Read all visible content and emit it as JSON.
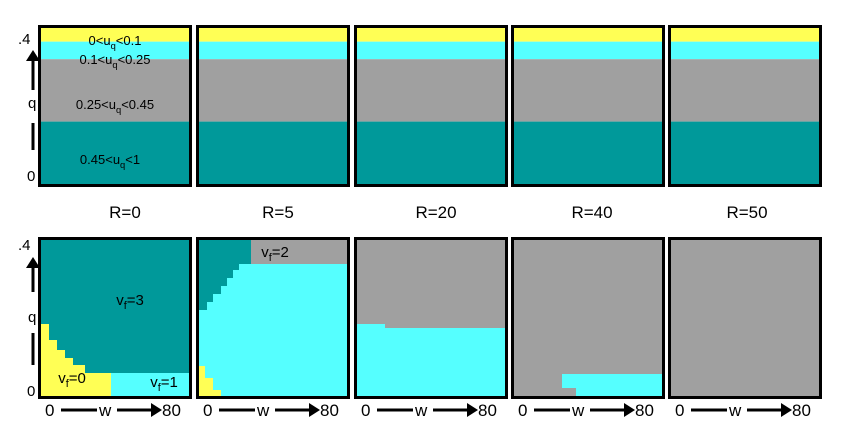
{
  "colors": {
    "yellow": "#ffff55",
    "cyan": "#55ffff",
    "gray": "#a0a0a0",
    "teal": "#00999a",
    "frame": "#000000"
  },
  "labels": {
    "q_axis": {
      "top": ".4",
      "mid": "q",
      "bottom": "0"
    },
    "w_axis": {
      "left": "0",
      "mid": "w",
      "right": "80"
    },
    "top_regions": [
      {
        "pre": "0<u",
        "sub": "q",
        "post": "<0.1"
      },
      {
        "pre": "0.1<u",
        "sub": "q",
        "post": "<0.25"
      },
      {
        "pre": "0.25<u",
        "sub": "q",
        "post": "<0.45"
      },
      {
        "pre": "0.45<u",
        "sub": "q",
        "post": "<1"
      }
    ],
    "vf_labels": [
      {
        "pre": "v",
        "sub": "f",
        "post": "=3"
      },
      {
        "pre": "v",
        "sub": "f",
        "post": "=0"
      },
      {
        "pre": "v",
        "sub": "f",
        "post": "=1"
      },
      {
        "pre": "v",
        "sub": "f",
        "post": "=2"
      }
    ]
  },
  "chart_data": [
    {
      "type": "heatmap",
      "title": "",
      "xlabel": "",
      "ylabel": "q",
      "ylim": [
        0,
        0.4
      ],
      "panels": [
        {
          "label": "R=0",
          "bands": [
            {
              "range": "0<uq<0.1",
              "q_lo": 0.365,
              "q_hi": 0.4
            },
            {
              "range": "0.1<uq<0.25",
              "q_lo": 0.32,
              "q_hi": 0.365
            },
            {
              "range": "0.25<uq<0.45",
              "q_lo": 0.16,
              "q_hi": 0.32
            },
            {
              "range": "0.45<uq<1",
              "q_lo": 0.0,
              "q_hi": 0.16
            }
          ]
        },
        {
          "label": "R=5",
          "bands": [
            {
              "range": "0<uq<0.1",
              "q_lo": 0.365,
              "q_hi": 0.4
            },
            {
              "range": "0.1<uq<0.25",
              "q_lo": 0.32,
              "q_hi": 0.365
            },
            {
              "range": "0.25<uq<0.45",
              "q_lo": 0.16,
              "q_hi": 0.32
            },
            {
              "range": "0.45<uq<1",
              "q_lo": 0.0,
              "q_hi": 0.16
            }
          ]
        },
        {
          "label": "R=20",
          "bands": [
            {
              "range": "0<uq<0.1",
              "q_lo": 0.365,
              "q_hi": 0.4
            },
            {
              "range": "0.1<uq<0.25",
              "q_lo": 0.32,
              "q_hi": 0.365
            },
            {
              "range": "0.25<uq<0.45",
              "q_lo": 0.16,
              "q_hi": 0.32
            },
            {
              "range": "0.45<uq<1",
              "q_lo": 0.0,
              "q_hi": 0.16
            }
          ]
        },
        {
          "label": "R=40",
          "bands": [
            {
              "range": "0<uq<0.1",
              "q_lo": 0.365,
              "q_hi": 0.4
            },
            {
              "range": "0.1<uq<0.25",
              "q_lo": 0.32,
              "q_hi": 0.365
            },
            {
              "range": "0.25<uq<0.45",
              "q_lo": 0.16,
              "q_hi": 0.32
            },
            {
              "range": "0.45<uq<1",
              "q_lo": 0.0,
              "q_hi": 0.16
            }
          ]
        },
        {
          "label": "R=50",
          "bands": [
            {
              "range": "0<uq<0.1",
              "q_lo": 0.365,
              "q_hi": 0.4
            },
            {
              "range": "0.1<uq<0.25",
              "q_lo": 0.32,
              "q_hi": 0.365
            },
            {
              "range": "0.25<uq<0.45",
              "q_lo": 0.16,
              "q_hi": 0.32
            },
            {
              "range": "0.45<uq<1",
              "q_lo": 0.0,
              "q_hi": 0.16
            }
          ]
        }
      ]
    },
    {
      "type": "heatmap",
      "title": "",
      "xlabel": "w",
      "ylabel": "q",
      "xlim": [
        0,
        80
      ],
      "ylim": [
        0,
        0.4
      ],
      "panels": [
        {
          "label": "R=0",
          "regions": [
            "vf=3",
            "vf=0",
            "vf=1"
          ]
        },
        {
          "label": "R=5",
          "regions": [
            "vf=3",
            "vf=2",
            "vf=1",
            "vf=0"
          ]
        },
        {
          "label": "R=20",
          "regions": [
            "vf=2",
            "vf=1"
          ]
        },
        {
          "label": "R=40",
          "regions": [
            "vf=2",
            "vf=1"
          ]
        },
        {
          "label": "R=50",
          "regions": [
            "vf=2"
          ]
        }
      ]
    }
  ]
}
